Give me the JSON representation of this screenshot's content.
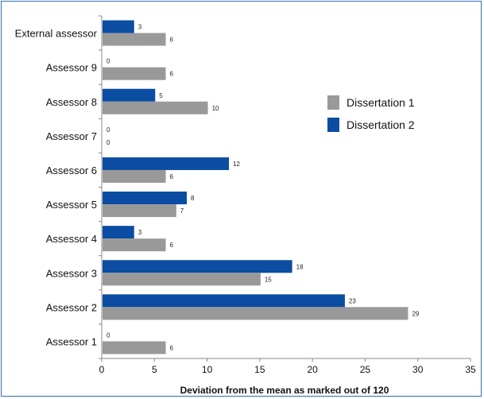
{
  "chart_data": {
    "type": "bar",
    "orientation": "horizontal",
    "categories": [
      "External assessor",
      "Assessor 9",
      "Assessor 8",
      "Assessor 7",
      "Assessor 6",
      "Assessor 5",
      "Assessor 4",
      "Assessor 3",
      "Assessor 2",
      "Assessor 1"
    ],
    "series": [
      {
        "name": "Dissertation 1",
        "color": "#999999",
        "values": [
          6,
          6,
          10,
          0,
          6,
          7,
          6,
          15,
          29,
          6
        ]
      },
      {
        "name": "Dissertation 2",
        "color": "#0a4da2",
        "values": [
          3,
          0,
          5,
          0,
          12,
          8,
          3,
          18,
          23,
          0
        ]
      }
    ],
    "xlabel": "Deviation from the mean as marked out of 120",
    "xlim": [
      0,
      35
    ],
    "xticks": [
      0,
      5,
      10,
      15,
      20,
      25,
      30,
      35
    ],
    "legend_position": "right",
    "grid": false
  }
}
